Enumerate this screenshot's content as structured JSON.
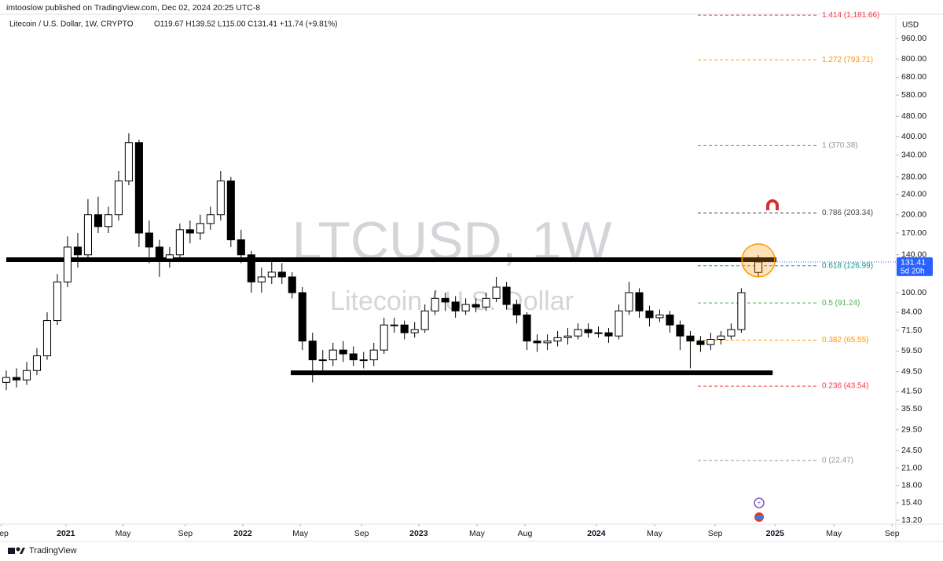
{
  "header": {
    "publisher": "imtooslow published on TradingView.com, Dec 02, 2024 20:25 UTC-8"
  },
  "footer": {
    "brand": "TradingView"
  },
  "chart_data": {
    "type": "candlestick",
    "legend": {
      "symbol": "Litecoin / U.S. Dollar, 1W, CRYPTO",
      "ohlc": "O119.67 H139.52 L115.00 C131.41 +11.74 (+9.81%)"
    },
    "watermark": {
      "title": "LTCUSD, 1W",
      "subtitle": "Litecoin / U.S. Dollar"
    },
    "currency": "USD",
    "log_scale": true,
    "up_color": "#ffffff",
    "down_color": "#000000",
    "x": [
      0,
      3,
      6,
      9,
      12,
      15,
      18,
      21,
      24,
      27,
      30,
      33,
      36,
      39,
      42,
      45,
      48,
      51,
      54,
      57,
      60,
      63,
      66,
      69,
      72,
      75,
      78,
      81,
      84,
      87,
      90,
      93,
      96,
      99,
      102,
      105,
      108,
      111,
      114,
      117,
      120,
      123,
      126,
      129,
      132,
      135,
      138,
      141,
      144,
      147,
      150,
      153,
      156,
      159,
      162,
      165,
      168,
      171,
      174,
      177,
      180,
      183,
      186,
      189,
      192,
      195,
      198,
      201,
      204,
      207,
      210,
      213,
      216,
      221
    ],
    "open": [
      45,
      47,
      46,
      50,
      57,
      78,
      110,
      150,
      140,
      200,
      180,
      200,
      270,
      380,
      170,
      150,
      135,
      140,
      175,
      170,
      185,
      200,
      270,
      160,
      140,
      110,
      115,
      120,
      115,
      100,
      65,
      55,
      55,
      60,
      58,
      55,
      55,
      60,
      75,
      75,
      70,
      72,
      85,
      95,
      92,
      85,
      90,
      88,
      95,
      105,
      90,
      82,
      65,
      64,
      65,
      67,
      68,
      72,
      70,
      70,
      68,
      85,
      100,
      85,
      80,
      82,
      75,
      68,
      65,
      63,
      66,
      68,
      72,
      119.67
    ],
    "high": [
      50,
      51,
      54,
      61,
      84,
      118,
      165,
      170,
      230,
      235,
      215,
      295,
      413,
      390,
      190,
      160,
      150,
      185,
      190,
      200,
      215,
      295,
      280,
      175,
      145,
      125,
      135,
      130,
      120,
      105,
      70,
      60,
      64,
      65,
      62,
      59,
      64,
      80,
      80,
      78,
      77,
      90,
      102,
      100,
      97,
      95,
      95,
      100,
      115,
      110,
      94,
      84,
      69,
      69,
      71,
      73,
      76,
      76,
      74,
      73,
      90,
      110,
      104,
      89,
      86,
      85,
      78,
      71,
      68,
      70,
      71,
      76,
      104,
      139.52
    ],
    "low": [
      42,
      43,
      44,
      48,
      55,
      75,
      105,
      125,
      135,
      170,
      170,
      190,
      260,
      150,
      130,
      115,
      125,
      135,
      155,
      160,
      175,
      190,
      150,
      130,
      100,
      100,
      108,
      108,
      95,
      60,
      45,
      50,
      52,
      54,
      52,
      51,
      52,
      58,
      70,
      66,
      67,
      70,
      82,
      85,
      80,
      82,
      84,
      85,
      92,
      86,
      76,
      60,
      59,
      60,
      62,
      63,
      66,
      67,
      67,
      64,
      66,
      82,
      80,
      74,
      77,
      70,
      60,
      51,
      59,
      60,
      63,
      66,
      70,
      115
    ],
    "close": [
      47,
      46,
      50,
      57,
      78,
      110,
      150,
      140,
      200,
      180,
      200,
      270,
      380,
      170,
      150,
      135,
      140,
      175,
      170,
      185,
      200,
      270,
      160,
      140,
      110,
      115,
      120,
      115,
      100,
      65,
      55,
      55,
      60,
      58,
      55,
      55,
      60,
      75,
      75,
      70,
      72,
      85,
      95,
      92,
      85,
      90,
      88,
      95,
      105,
      90,
      82,
      65,
      64,
      65,
      67,
      68,
      72,
      70,
      70,
      68,
      85,
      100,
      85,
      80,
      82,
      75,
      68,
      65,
      63,
      66,
      68,
      72,
      100,
      131.41
    ],
    "last_price": {
      "value": 131.41,
      "label": "131.41",
      "countdown": "5d 20h",
      "color": "#2962ff"
    },
    "xlim": [
      -1.85,
      261.4
    ],
    "xticks": [
      {
        "value": -1.5,
        "label": "Sep"
      },
      {
        "value": 17.5,
        "label": "2021"
      },
      {
        "value": 34.3,
        "label": "May"
      },
      {
        "value": 52.6,
        "label": "Sep"
      },
      {
        "value": 69.5,
        "label": "2022"
      },
      {
        "value": 86.4,
        "label": "May"
      },
      {
        "value": 104.4,
        "label": "Sep"
      },
      {
        "value": 121.2,
        "label": "2023"
      },
      {
        "value": 138.3,
        "label": "May"
      },
      {
        "value": 152.4,
        "label": "Aug"
      },
      {
        "value": 173.4,
        "label": "2024"
      },
      {
        "value": 190.5,
        "label": "May"
      },
      {
        "value": 208.3,
        "label": "Sep"
      },
      {
        "value": 225.9,
        "label": "2025"
      },
      {
        "value": 243.2,
        "label": "May"
      },
      {
        "value": 260.3,
        "label": "Sep"
      }
    ],
    "ylim": [
      12.75,
      1192
    ],
    "yticks": [
      {
        "value": 960,
        "label": "960.00"
      },
      {
        "value": 800,
        "label": "800.00"
      },
      {
        "value": 680,
        "label": "680.00"
      },
      {
        "value": 580,
        "label": "580.00"
      },
      {
        "value": 480,
        "label": "480.00"
      },
      {
        "value": 400,
        "label": "400.00"
      },
      {
        "value": 340,
        "label": "340.00"
      },
      {
        "value": 280,
        "label": "280.00"
      },
      {
        "value": 240,
        "label": "240.00"
      },
      {
        "value": 200,
        "label": "200.00"
      },
      {
        "value": 170,
        "label": "170.00"
      },
      {
        "value": 140,
        "label": "140.00"
      },
      {
        "value": 100,
        "label": "100.00"
      },
      {
        "value": 84,
        "label": "84.00"
      },
      {
        "value": 71.5,
        "label": "71.50"
      },
      {
        "value": 59.5,
        "label": "59.50"
      },
      {
        "value": 49.5,
        "label": "49.50"
      },
      {
        "value": 41.5,
        "label": "41.50"
      },
      {
        "value": 35.5,
        "label": "35.50"
      },
      {
        "value": 29.5,
        "label": "29.50"
      },
      {
        "value": 24.5,
        "label": "24.50"
      },
      {
        "value": 21,
        "label": "21.00"
      },
      {
        "value": 18,
        "label": "18.00"
      },
      {
        "value": 15.4,
        "label": "15.40"
      },
      {
        "value": 13.2,
        "label": "13.20"
      }
    ],
    "fib_levels": [
      {
        "value": 1181.66,
        "label": "1.414 (1,181.66)",
        "color": "#f23645"
      },
      {
        "value": 793.71,
        "label": "1.272 (793.71)",
        "color": "#ff9800"
      },
      {
        "value": 370.38,
        "label": "1 (370.38)",
        "color": "#9598a1"
      },
      {
        "value": 203.34,
        "label": "0.786 (203.34)",
        "color": "#434651"
      },
      {
        "value": 126.99,
        "label": "0.618 (126.99)",
        "color": "#089981"
      },
      {
        "value": 91.24,
        "label": "0.5 (91.24)",
        "color": "#4caf50"
      },
      {
        "value": 65.55,
        "label": "0.382 (65.55)",
        "color": "#ff9800"
      },
      {
        "value": 43.54,
        "label": "0.236 (43.54)",
        "color": "#f23645"
      },
      {
        "value": 22.47,
        "label": "0 (22.47)",
        "color": "#9598a1"
      }
    ],
    "levels": [
      {
        "value": 134,
        "from": 0,
        "to": 226.3
      },
      {
        "value": 49,
        "from": 83.6,
        "to": 225.2
      }
    ]
  }
}
